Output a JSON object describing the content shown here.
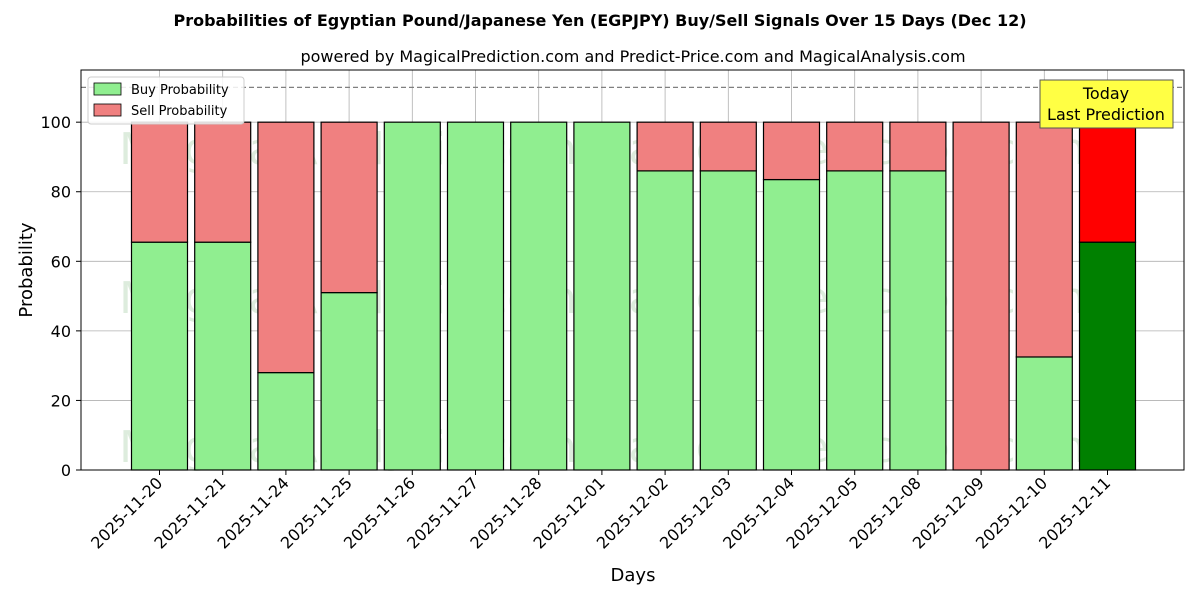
{
  "chart_data": {
    "type": "bar",
    "stacked": true,
    "title": "Probabilities of Egyptian Pound/Japanese Yen (EGPJPY) Buy/Sell Signals Over 15 Days (Dec 12)",
    "subtitle": "powered by MagicalPrediction.com and Predict-Price.com and MagicalAnalysis.com",
    "xlabel": "Days",
    "ylabel": "Probability",
    "ylim": [
      0,
      115
    ],
    "yticks": [
      0,
      20,
      40,
      60,
      80,
      100
    ],
    "grid": true,
    "legend_placement": "top-left",
    "reference_line": 110,
    "categories": [
      "2025-11-20",
      "2025-11-21",
      "2025-11-24",
      "2025-11-25",
      "2025-11-26",
      "2025-11-27",
      "2025-11-28",
      "2025-12-01",
      "2025-12-02",
      "2025-12-03",
      "2025-12-04",
      "2025-12-05",
      "2025-12-08",
      "2025-12-09",
      "2025-12-10",
      "2025-12-11"
    ],
    "series": [
      {
        "name": "Buy Probability",
        "color": "#90ee90",
        "values": [
          65.5,
          65.5,
          28,
          51,
          100,
          100,
          100,
          100,
          86,
          86,
          83.5,
          86,
          86,
          0,
          32.5,
          65.5
        ]
      },
      {
        "name": "Sell Probability",
        "color": "#f08080",
        "values": [
          34.5,
          34.5,
          72,
          49,
          0,
          0,
          0,
          0,
          14,
          14,
          16.5,
          14,
          14,
          100,
          67.5,
          34.5
        ]
      }
    ],
    "highlight": {
      "index": 15,
      "buy_color": "#008000",
      "sell_color": "#ff0000"
    },
    "annotation": {
      "line1": "Today",
      "line2": "Last Prediction"
    },
    "watermarks": [
      "MagicalAnalysis.com",
      "MagicalPrediction.com"
    ]
  }
}
